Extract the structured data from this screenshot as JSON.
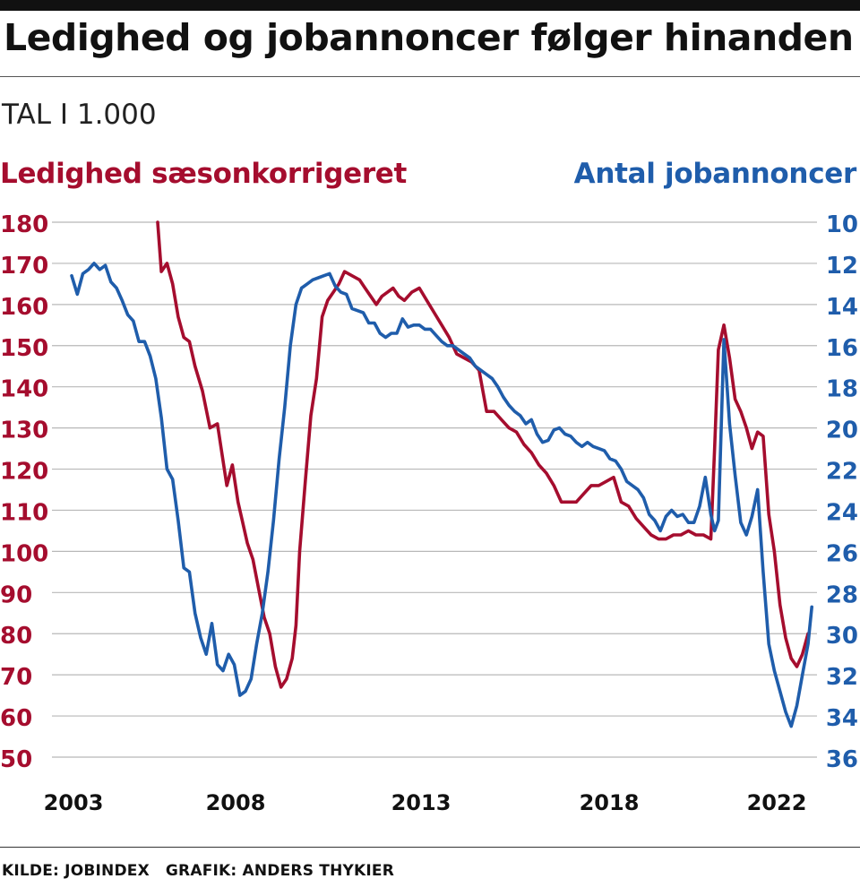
{
  "header": {
    "title": "Ledighed og jobannoncer følger hinanden",
    "subtitle": "TAL I 1.000"
  },
  "footer": {
    "source": "KILDE: JOBINDEX",
    "graphic": "GRAFIK: ANDERS THYKIER"
  },
  "colors": {
    "unemployment": "#a50d2e",
    "job_ads": "#1f5dab",
    "grid": "#b8b8b8"
  },
  "chart_data": {
    "type": "line",
    "title": "Ledighed og jobannoncer følger hinanden",
    "subtitle": "TAL I 1.000",
    "x_ticks": [
      "2003",
      "2008",
      "2013",
      "2018",
      "2022"
    ],
    "x_tick_values": [
      2003,
      2008,
      2013,
      2018,
      2022
    ],
    "xlim": [
      2003,
      2023
    ],
    "left_axis": {
      "label": "Ledighed sæsonkorrigeret",
      "ylim": [
        50,
        180
      ],
      "ticks": [
        180,
        170,
        160,
        150,
        140,
        130,
        120,
        110,
        100,
        90,
        80,
        70,
        60,
        50
      ]
    },
    "right_axis": {
      "label": "Antal jobannoncer",
      "ylim": [
        36,
        10
      ],
      "reversed": true,
      "ticks": [
        10,
        12,
        14,
        16,
        18,
        20,
        22,
        24,
        26,
        28,
        30,
        32,
        34,
        36
      ]
    },
    "grid": true,
    "series": [
      {
        "name": "Ledighed sæsonkorrigeret",
        "axis": "left",
        "x": [
          2005.3,
          2005.4,
          2005.55,
          2005.7,
          2005.85,
          2006.0,
          2006.15,
          2006.3,
          2006.5,
          2006.7,
          2006.9,
          2007.0,
          2007.15,
          2007.3,
          2007.45,
          2007.55,
          2007.7,
          2007.85,
          2008.0,
          2008.15,
          2008.3,
          2008.45,
          2008.6,
          2008.75,
          2008.9,
          2009.0,
          2009.1,
          2009.25,
          2009.4,
          2009.55,
          2009.7,
          2009.85,
          2010.0,
          2010.15,
          2010.3,
          2010.5,
          2010.7,
          2010.85,
          2011.0,
          2011.15,
          2011.3,
          2011.45,
          2011.6,
          2011.75,
          2011.9,
          2012.1,
          2012.3,
          2012.5,
          2012.7,
          2012.9,
          2013.1,
          2013.3,
          2013.5,
          2013.7,
          2013.9,
          2014.1,
          2014.3,
          2014.5,
          2014.7,
          2014.9,
          2015.1,
          2015.3,
          2015.5,
          2015.7,
          2015.9,
          2016.1,
          2016.3,
          2016.5,
          2016.7,
          2016.9,
          2017.1,
          2017.3,
          2017.5,
          2017.7,
          2017.9,
          2018.1,
          2018.3,
          2018.5,
          2018.7,
          2018.9,
          2019.1,
          2019.3,
          2019.5,
          2019.7,
          2019.9,
          2020.1,
          2020.2,
          2020.3,
          2020.45,
          2020.6,
          2020.75,
          2020.9,
          2021.05,
          2021.2,
          2021.35,
          2021.5,
          2021.65,
          2021.8,
          2021.95,
          2022.1,
          2022.25,
          2022.4,
          2022.55,
          2022.7
        ],
        "values": [
          180,
          168,
          170,
          165,
          157,
          152,
          151,
          145,
          139,
          130,
          131,
          125,
          116,
          121,
          112,
          108,
          102,
          98,
          91,
          84,
          80,
          72,
          67,
          69,
          74,
          82,
          100,
          117,
          133,
          142,
          157,
          161,
          163,
          165,
          168,
          167,
          166,
          164,
          162,
          160,
          162,
          163,
          164,
          162,
          161,
          163,
          164,
          161,
          158,
          155,
          152,
          148,
          147,
          146,
          144,
          134,
          134,
          132,
          130,
          129,
          126,
          124,
          121,
          119,
          116,
          112,
          112,
          112,
          114,
          116,
          116,
          117,
          118,
          112,
          111,
          108,
          106,
          104,
          103,
          103,
          104,
          104,
          105,
          104,
          104,
          103,
          125,
          149,
          155,
          147,
          137,
          134,
          130,
          125,
          129,
          128,
          109,
          100,
          87,
          79,
          74,
          72,
          75,
          80
        ]
      },
      {
        "name": "Antal jobannoncer",
        "axis": "right",
        "x": [
          2003.0,
          2003.15,
          2003.3,
          2003.45,
          2003.6,
          2003.75,
          2003.9,
          2004.05,
          2004.2,
          2004.35,
          2004.5,
          2004.65,
          2004.8,
          2004.95,
          2005.1,
          2005.25,
          2005.4,
          2005.55,
          2005.7,
          2005.85,
          2006.0,
          2006.15,
          2006.3,
          2006.45,
          2006.6,
          2006.75,
          2006.9,
          2007.05,
          2007.2,
          2007.35,
          2007.5,
          2007.65,
          2007.8,
          2007.95,
          2008.1,
          2008.25,
          2008.4,
          2008.55,
          2008.7,
          2008.85,
          2009.0,
          2009.15,
          2009.3,
          2009.45,
          2009.6,
          2009.75,
          2009.9,
          2010.05,
          2010.2,
          2010.35,
          2010.5,
          2010.65,
          2010.8,
          2010.95,
          2011.1,
          2011.25,
          2011.4,
          2011.55,
          2011.7,
          2011.85,
          2012.0,
          2012.15,
          2012.3,
          2012.45,
          2012.6,
          2012.75,
          2012.9,
          2013.05,
          2013.2,
          2013.35,
          2013.5,
          2013.65,
          2013.8,
          2013.95,
          2014.1,
          2014.25,
          2014.4,
          2014.55,
          2014.7,
          2014.85,
          2015.0,
          2015.15,
          2015.3,
          2015.45,
          2015.6,
          2015.75,
          2015.9,
          2016.05,
          2016.2,
          2016.35,
          2016.5,
          2016.65,
          2016.8,
          2016.95,
          2017.1,
          2017.25,
          2017.4,
          2017.55,
          2017.7,
          2017.85,
          2018.0,
          2018.15,
          2018.3,
          2018.45,
          2018.6,
          2018.75,
          2018.9,
          2019.05,
          2019.2,
          2019.35,
          2019.5,
          2019.65,
          2019.8,
          2019.95,
          2020.1,
          2020.2,
          2020.3,
          2020.45,
          2020.6,
          2020.75,
          2020.9,
          2021.05,
          2021.2,
          2021.35,
          2021.5,
          2021.65,
          2021.8,
          2021.95,
          2022.1,
          2022.25,
          2022.4,
          2022.55,
          2022.7,
          2022.8
        ],
        "values": [
          12.6,
          13.5,
          12.5,
          12.3,
          12.0,
          12.3,
          12.1,
          12.9,
          13.2,
          13.8,
          14.5,
          14.8,
          15.8,
          15.8,
          16.5,
          17.6,
          19.5,
          22.0,
          22.5,
          24.5,
          26.8,
          27.0,
          29.0,
          30.2,
          31.0,
          29.5,
          31.5,
          31.8,
          31.0,
          31.5,
          33.0,
          32.8,
          32.2,
          30.5,
          29.0,
          27.0,
          24.5,
          21.5,
          19.0,
          16.0,
          14.0,
          13.2,
          13.0,
          12.8,
          12.7,
          12.6,
          12.5,
          13.1,
          13.4,
          13.5,
          14.2,
          14.3,
          14.4,
          14.9,
          14.9,
          15.4,
          15.6,
          15.4,
          15.4,
          14.7,
          15.1,
          15.0,
          15.0,
          15.2,
          15.2,
          15.5,
          15.8,
          16.0,
          16.0,
          16.2,
          16.4,
          16.6,
          17.0,
          17.2,
          17.4,
          17.6,
          18.0,
          18.5,
          18.9,
          19.2,
          19.4,
          19.8,
          19.6,
          20.3,
          20.7,
          20.6,
          20.1,
          20.0,
          20.3,
          20.4,
          20.7,
          20.9,
          20.7,
          20.9,
          21.0,
          21.1,
          21.5,
          21.6,
          22.0,
          22.6,
          22.8,
          23.0,
          23.4,
          24.2,
          24.5,
          25.0,
          24.3,
          24.0,
          24.3,
          24.2,
          24.6,
          24.6,
          23.8,
          22.4,
          24.2,
          25.0,
          24.5,
          15.7,
          19.8,
          22.3,
          24.6,
          25.2,
          24.3,
          23.0,
          27.0,
          30.5,
          31.8,
          32.8,
          33.8,
          34.5,
          33.5,
          32.0,
          30.5,
          28.7
        ]
      }
    ]
  }
}
